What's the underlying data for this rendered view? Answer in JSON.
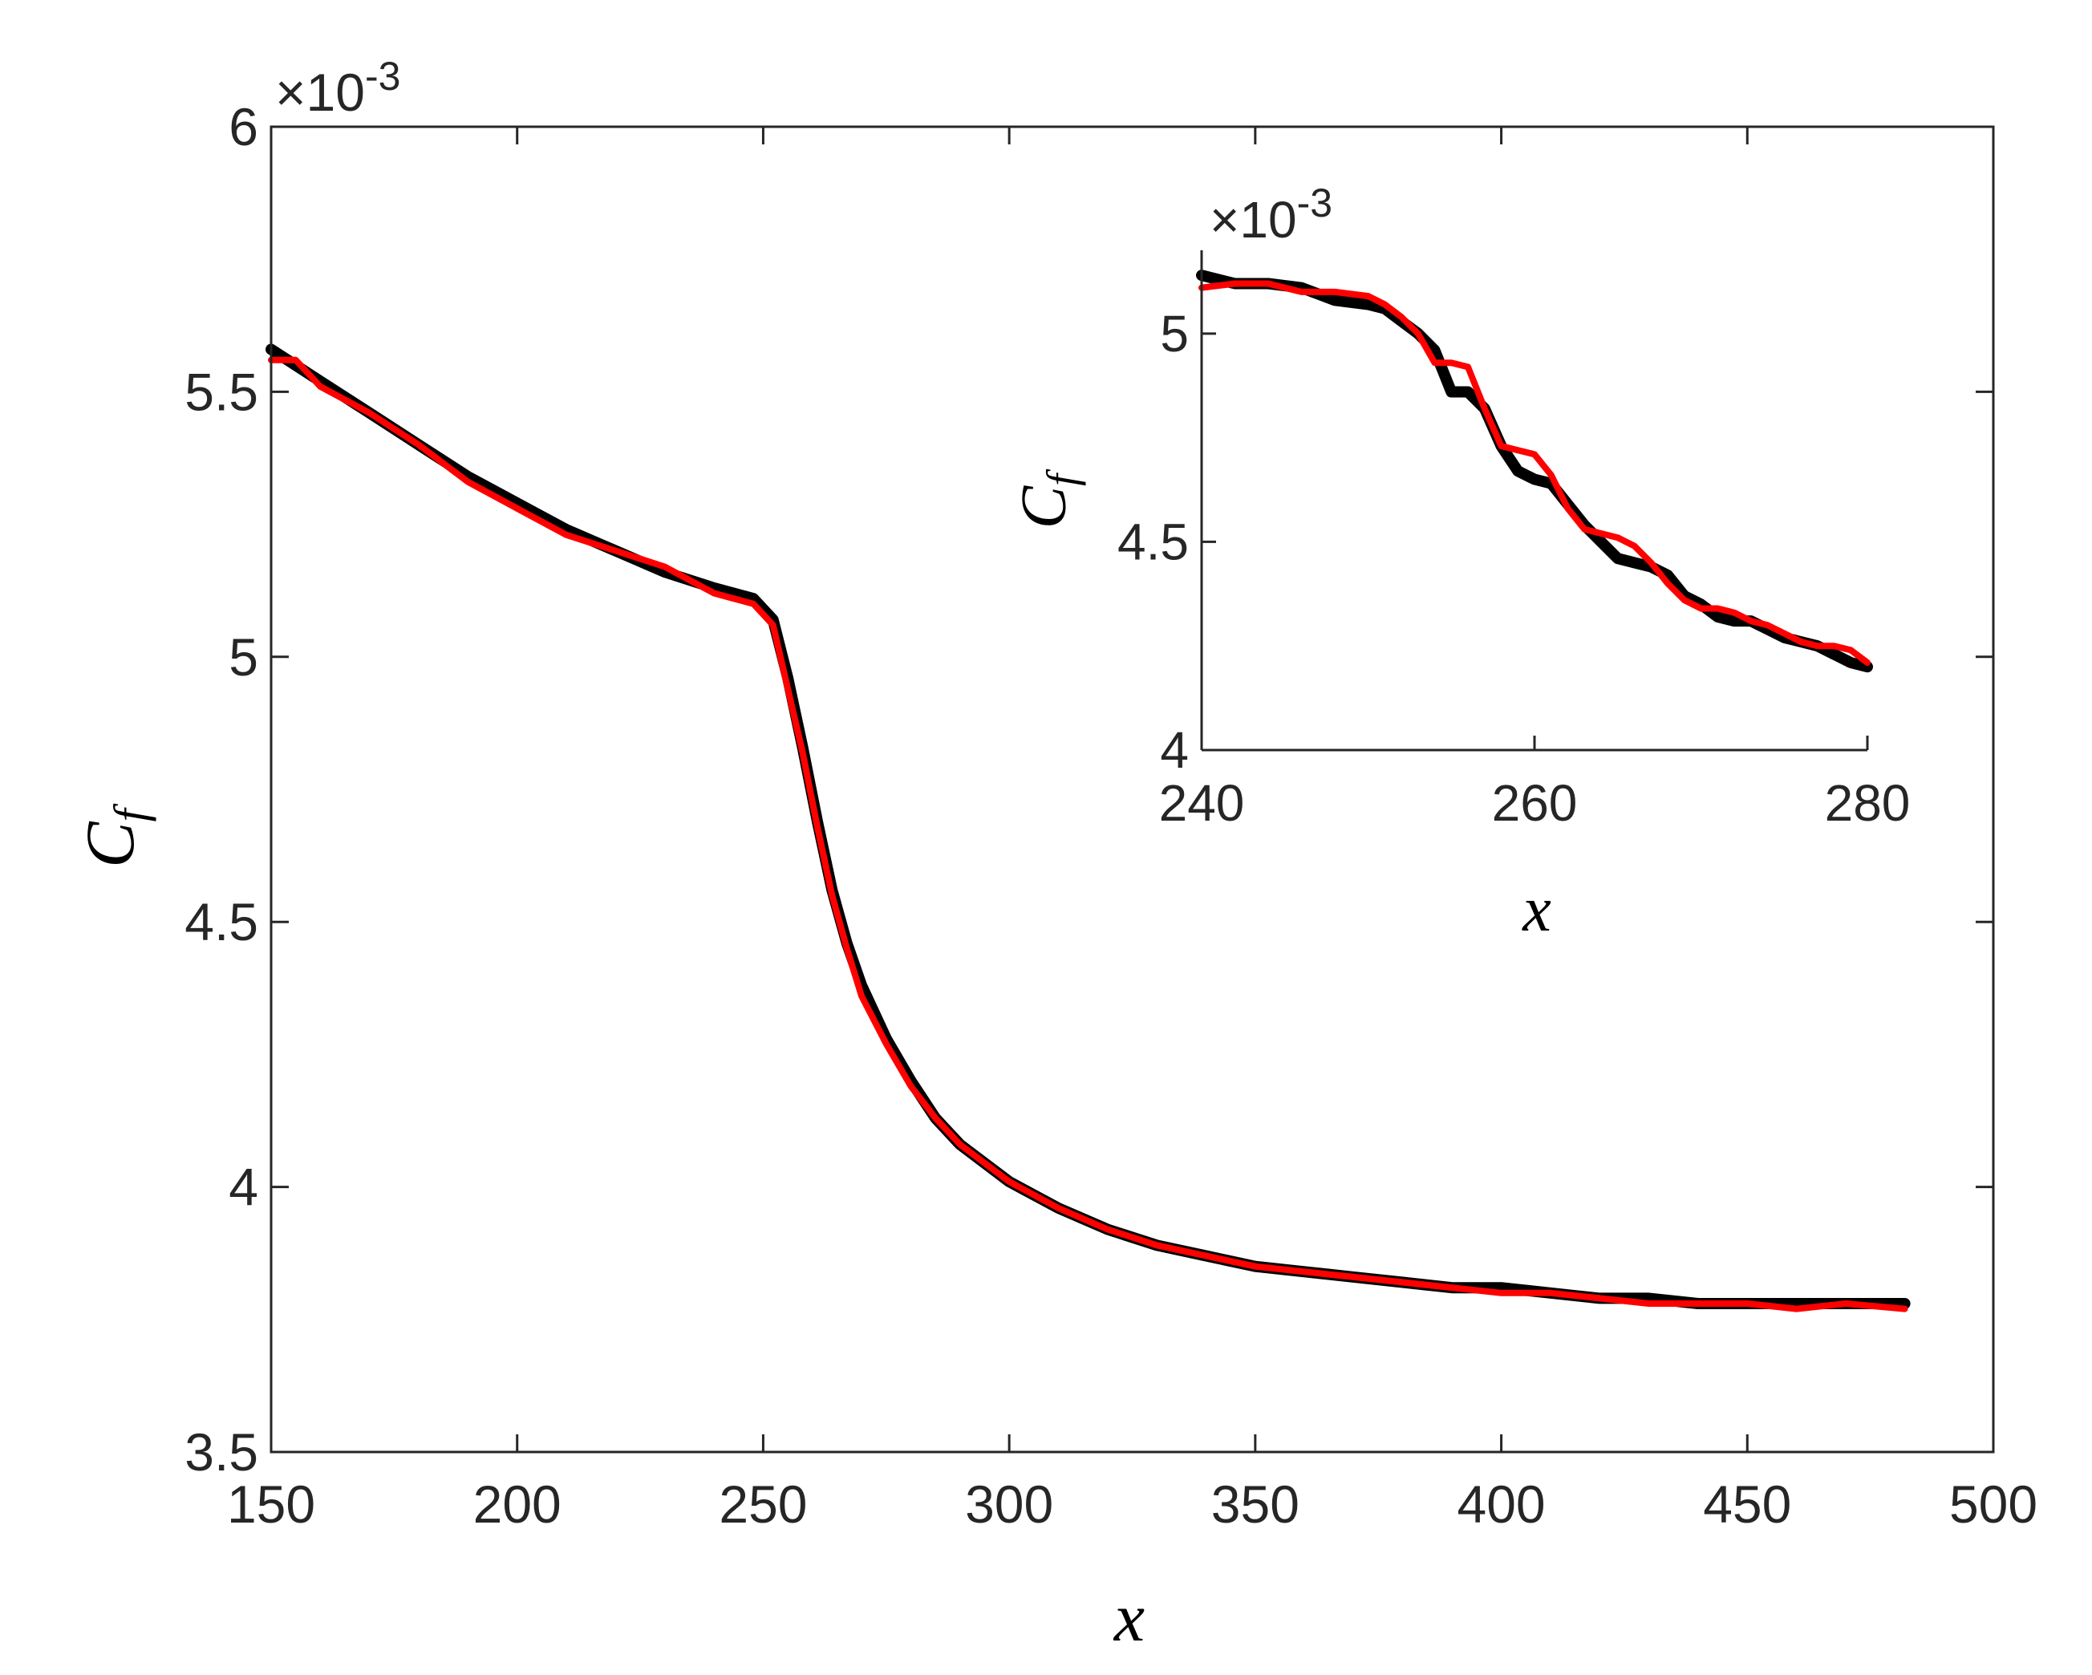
{
  "chart_data": [
    {
      "type": "line",
      "role": "main",
      "x_label": "x",
      "y_label": "C",
      "y_label_subscript": "f",
      "y_exponent_label": "×10",
      "y_exponent_power": "-3",
      "xlim": [
        150,
        500
      ],
      "ylim": [
        3.5,
        6
      ],
      "x_ticks": [
        "150",
        "200",
        "250",
        "300",
        "350",
        "400",
        "450",
        "500"
      ],
      "y_ticks": [
        "3.5",
        "4",
        "4.5",
        "5",
        "5.5",
        "6"
      ],
      "colors": {
        "black_series": "#000000",
        "red_series": "#ff0000"
      },
      "series": [
        {
          "color": "#000000",
          "x": [
            150,
            160,
            170,
            180,
            190,
            200,
            210,
            220,
            230,
            240,
            248,
            252,
            255,
            258,
            261,
            264,
            267,
            270,
            275,
            280,
            285,
            290,
            300,
            310,
            320,
            330,
            340,
            350,
            360,
            370,
            380,
            390,
            400,
            410,
            420,
            430,
            440,
            450,
            460,
            470,
            482
          ],
          "y": [
            5.58,
            5.52,
            5.46,
            5.4,
            5.34,
            5.29,
            5.24,
            5.2,
            5.16,
            5.13,
            5.11,
            5.07,
            4.96,
            4.83,
            4.69,
            4.56,
            4.46,
            4.38,
            4.28,
            4.2,
            4.13,
            4.08,
            4.01,
            3.96,
            3.92,
            3.89,
            3.87,
            3.85,
            3.84,
            3.83,
            3.82,
            3.81,
            3.81,
            3.8,
            3.79,
            3.79,
            3.78,
            3.78,
            3.78,
            3.78,
            3.78
          ]
        },
        {
          "color": "#ff0000",
          "x": [
            150,
            155,
            160,
            170,
            180,
            190,
            200,
            210,
            220,
            230,
            240,
            248,
            252,
            255,
            258,
            261,
            264,
            267,
            270,
            275,
            280,
            285,
            290,
            300,
            310,
            320,
            330,
            340,
            350,
            360,
            370,
            380,
            390,
            400,
            410,
            420,
            430,
            440,
            450,
            460,
            470,
            482
          ],
          "y": [
            5.56,
            5.56,
            5.51,
            5.46,
            5.4,
            5.33,
            5.28,
            5.23,
            5.2,
            5.17,
            5.12,
            5.1,
            5.06,
            4.94,
            4.82,
            4.68,
            4.55,
            4.45,
            4.36,
            4.27,
            4.19,
            4.13,
            4.08,
            4.01,
            3.96,
            3.92,
            3.89,
            3.87,
            3.85,
            3.84,
            3.83,
            3.82,
            3.81,
            3.8,
            3.8,
            3.79,
            3.78,
            3.78,
            3.78,
            3.77,
            3.78,
            3.77
          ]
        }
      ]
    },
    {
      "type": "line",
      "role": "inset",
      "x_label": "x",
      "y_label": "C",
      "y_label_subscript": "f",
      "y_exponent_label": "×10",
      "y_exponent_power": "-3",
      "xlim": [
        240,
        280
      ],
      "ylim": [
        4,
        5.2
      ],
      "x_ticks": [
        "240",
        "260",
        "280"
      ],
      "y_ticks": [
        "4",
        "4.5",
        "5"
      ],
      "series": [
        {
          "color": "#000000",
          "x": [
            240,
            242,
            244,
            246,
            248,
            250,
            251,
            252,
            253,
            254,
            255,
            256,
            257,
            258,
            259,
            260,
            261,
            262,
            263,
            264,
            265,
            266,
            267,
            268,
            269,
            270,
            271,
            272,
            273,
            274,
            275,
            276,
            277,
            278,
            279,
            280
          ],
          "y": [
            5.14,
            5.12,
            5.12,
            5.11,
            5.08,
            5.07,
            5.06,
            5.03,
            5.0,
            4.96,
            4.86,
            4.86,
            4.82,
            4.73,
            4.67,
            4.65,
            4.64,
            4.59,
            4.54,
            4.5,
            4.46,
            4.45,
            4.44,
            4.42,
            4.37,
            4.35,
            4.32,
            4.31,
            4.31,
            4.29,
            4.27,
            4.26,
            4.25,
            4.23,
            4.21,
            4.2
          ]
        },
        {
          "color": "#ff0000",
          "x": [
            240,
            242,
            244,
            246,
            248,
            250,
            251,
            252,
            253,
            254,
            255,
            256,
            257,
            258,
            259,
            260,
            261,
            262,
            263,
            264,
            265,
            266,
            267,
            268,
            269,
            270,
            271,
            272,
            273,
            274,
            275,
            276,
            277,
            278,
            279,
            280
          ],
          "y": [
            5.11,
            5.12,
            5.12,
            5.1,
            5.1,
            5.09,
            5.07,
            5.04,
            5.0,
            4.93,
            4.93,
            4.92,
            4.82,
            4.73,
            4.72,
            4.71,
            4.66,
            4.58,
            4.53,
            4.52,
            4.51,
            4.49,
            4.45,
            4.4,
            4.36,
            4.34,
            4.34,
            4.33,
            4.31,
            4.3,
            4.28,
            4.26,
            4.25,
            4.25,
            4.24,
            4.21
          ]
        }
      ]
    }
  ]
}
